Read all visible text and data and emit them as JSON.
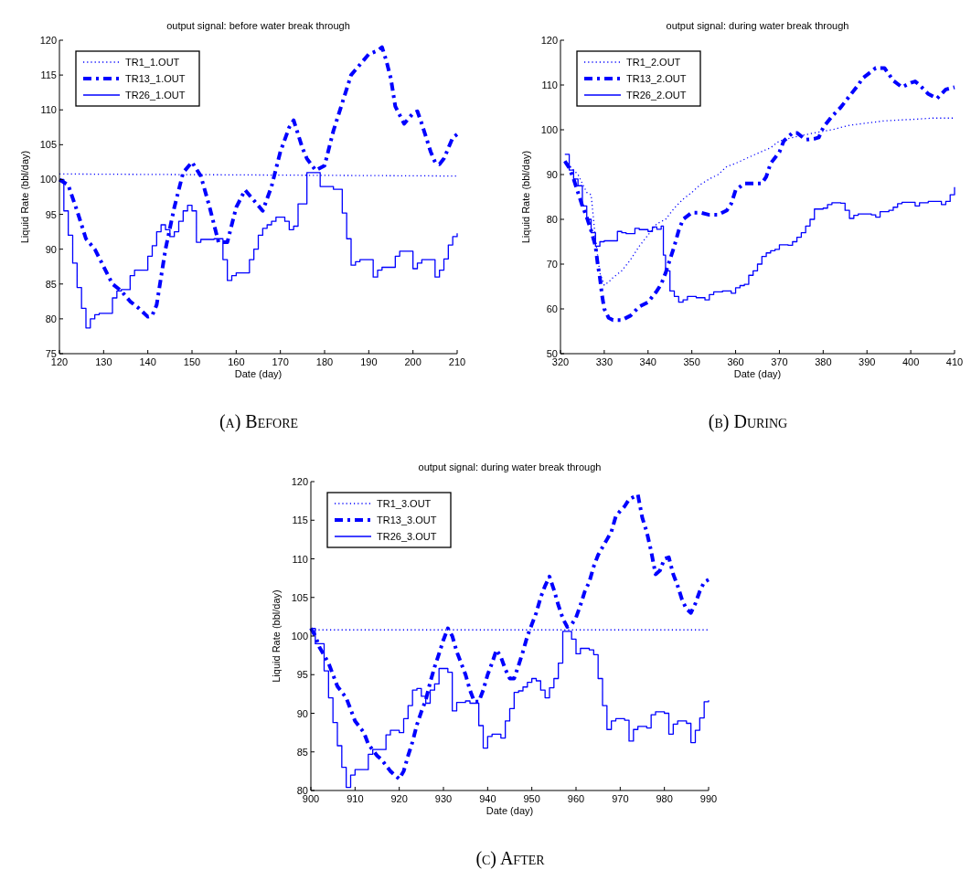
{
  "chart_data": [
    {
      "type": "line",
      "title": "output signal: before water break through",
      "xlabel": "Date (day)",
      "ylabel": "Liquid Rate (bbl/day)",
      "xlim": [
        120,
        210
      ],
      "xticks": [
        120,
        130,
        140,
        150,
        160,
        170,
        180,
        190,
        200,
        210
      ],
      "ylim": [
        75,
        120
      ],
      "yticks": [
        75,
        80,
        85,
        90,
        95,
        100,
        105,
        110,
        115,
        120
      ],
      "legend": "top left",
      "annotations": [
        "(a) Before"
      ],
      "series": [
        {
          "name": "TR1_1.OUT",
          "color": "#0000ff",
          "line_style": "dotted",
          "x": [
            120,
            150,
            180,
            210
          ],
          "values": [
            100.8,
            100.7,
            100.6,
            100.5
          ]
        },
        {
          "name": "TR13_1.OUT",
          "color": "#0000ff",
          "line_style": "dashed",
          "x": [
            120,
            122,
            124,
            126,
            128,
            130,
            132,
            134,
            136,
            138,
            140,
            141,
            142,
            143,
            144,
            146,
            148,
            150,
            152,
            154,
            156,
            158,
            160,
            162,
            164,
            166,
            168,
            170,
            172,
            173,
            175,
            176,
            178,
            180,
            182,
            184,
            186,
            188,
            190,
            192,
            193,
            194,
            195,
            196,
            198,
            200,
            201,
            202,
            203,
            204,
            205,
            206,
            207,
            208,
            209,
            210
          ],
          "values": [
            100,
            99.2,
            95.5,
            91.5,
            90,
            87.5,
            85,
            84,
            82.5,
            81.5,
            80.3,
            80.5,
            82,
            86,
            90,
            96,
            101,
            102.5,
            100.5,
            96,
            91,
            91,
            96,
            98.5,
            97,
            95.5,
            99,
            104,
            107.5,
            108.5,
            104.5,
            103,
            101.3,
            102,
            107,
            111,
            115,
            116.5,
            118,
            118.5,
            119,
            117,
            114.5,
            110.5,
            108,
            109.5,
            109.8,
            108,
            106,
            104,
            102.5,
            102.2,
            103,
            104.5,
            106,
            106.5
          ]
        },
        {
          "name": "TR26_1.OUT",
          "type": "step",
          "color": "#0000ff",
          "line_style": "solid",
          "x": [
            120,
            121,
            122,
            123,
            124,
            125,
            126,
            127,
            128,
            129,
            132,
            133,
            134,
            136,
            137,
            138,
            140,
            141,
            142,
            143,
            144,
            145,
            146,
            147,
            148,
            149,
            150,
            151,
            152,
            155,
            157,
            158,
            159,
            160,
            162,
            163,
            164,
            165,
            166,
            167,
            168,
            169,
            171,
            172,
            173,
            174,
            176,
            179,
            182,
            184,
            185,
            186,
            187,
            188,
            191,
            192,
            193,
            196,
            197,
            200,
            201,
            202,
            205,
            206,
            207,
            208,
            209,
            210
          ],
          "values": [
            100,
            95.5,
            92,
            88,
            84.5,
            81.5,
            78.7,
            80,
            80.6,
            80.8,
            83,
            84,
            84.2,
            86.2,
            87,
            87,
            89,
            90.5,
            92.5,
            93.5,
            92.8,
            91.8,
            92.5,
            94,
            95.5,
            96.3,
            95.5,
            91,
            91.4,
            91.5,
            88.5,
            85.5,
            86.2,
            86.6,
            86.6,
            88.5,
            90,
            92,
            93,
            93.5,
            94,
            94.6,
            94,
            92.8,
            93.3,
            96.5,
            101,
            99,
            98.6,
            95.2,
            91.5,
            87.7,
            88.2,
            88.5,
            86,
            87,
            87.4,
            89,
            89.7,
            87.2,
            88,
            88.5,
            86,
            87,
            88.6,
            90.6,
            91.8,
            92.3
          ]
        }
      ]
    },
    {
      "type": "line",
      "title": "output signal: during water break through",
      "xlabel": "Date (day)",
      "ylabel": "Liquid Rate (bbl/day)",
      "xlim": [
        320,
        410
      ],
      "xticks": [
        320,
        330,
        340,
        350,
        360,
        370,
        380,
        390,
        400,
        410
      ],
      "ylim": [
        50,
        120
      ],
      "yticks": [
        50,
        60,
        70,
        80,
        90,
        100,
        110,
        120
      ],
      "legend": "top left",
      "annotations": [
        "(b) During"
      ],
      "series": [
        {
          "name": "TR1_2.OUT",
          "color": "#0000ff",
          "line_style": "dotted",
          "x": [
            321,
            322,
            324,
            326,
            327,
            328,
            329,
            330,
            331,
            332,
            334,
            336,
            338,
            340,
            342,
            344,
            346,
            348,
            350,
            352,
            354,
            356,
            358,
            360,
            364,
            368,
            370,
            374,
            378,
            382,
            386,
            390,
            394,
            400,
            405,
            410
          ],
          "values": [
            93,
            92,
            90,
            86,
            85.5,
            75.5,
            68,
            65.3,
            66,
            67,
            68.5,
            71,
            74,
            76.5,
            79,
            80,
            82.5,
            84.5,
            86,
            87.8,
            89,
            90,
            91.8,
            92.5,
            94.3,
            96,
            97.5,
            98.5,
            99.3,
            100,
            101,
            101.5,
            102,
            102.3,
            102.6,
            102.6
          ]
        },
        {
          "name": "TR13_2.OUT",
          "color": "#0000ff",
          "line_style": "dashed",
          "x": [
            321,
            322,
            323,
            324,
            325,
            326,
            327,
            328,
            328.5,
            329,
            329.5,
            330,
            331,
            332,
            334,
            336,
            338,
            340,
            342,
            343,
            344,
            345,
            346,
            347,
            348,
            350,
            352,
            354,
            356,
            358,
            359,
            360,
            362,
            364,
            366,
            367,
            368,
            370,
            371,
            373,
            374,
            376,
            378,
            379,
            380,
            382,
            384,
            386,
            388,
            389,
            391,
            392,
            394,
            396,
            398,
            400,
            401,
            402,
            404,
            406,
            408,
            410
          ],
          "values": [
            93,
            91.5,
            89,
            86,
            83,
            80.5,
            77.5,
            74,
            70,
            67,
            63,
            60,
            58,
            57.5,
            57.5,
            58.5,
            60.5,
            61.5,
            64,
            65.5,
            68,
            71,
            74,
            77.5,
            80,
            81.5,
            81.5,
            81,
            81,
            82,
            83.5,
            86.5,
            88,
            88,
            88,
            89.5,
            92.5,
            95,
            97.5,
            99.3,
            99.3,
            97.8,
            98,
            98.3,
            100.5,
            103,
            105,
            107.5,
            110,
            111.5,
            113,
            113.8,
            113.8,
            111,
            109.5,
            110.5,
            110.8,
            110,
            108,
            107,
            109,
            109.5
          ]
        },
        {
          "name": "TR26_2.OUT",
          "type": "step",
          "color": "#0000ff",
          "line_style": "solid",
          "x": [
            321,
            322,
            323,
            324,
            325,
            326,
            327,
            328,
            329,
            330,
            332,
            333,
            334,
            335,
            337,
            338,
            340,
            341,
            342,
            343,
            343.5,
            344,
            345,
            346,
            347,
            348,
            349,
            351,
            353,
            354,
            355,
            357,
            359,
            360,
            361,
            362,
            363,
            364,
            365,
            366,
            367,
            368,
            369,
            370,
            372,
            373,
            374,
            375,
            376,
            377,
            378,
            380,
            381,
            382,
            384,
            385,
            386,
            387,
            388,
            391,
            392,
            393,
            395,
            396,
            397,
            398,
            400,
            401,
            402,
            404,
            406,
            407,
            408,
            409,
            410
          ],
          "values": [
            94.5,
            91,
            89,
            87.5,
            83,
            80,
            77,
            74,
            75,
            75.2,
            75.2,
            77.3,
            77,
            76.8,
            78,
            77.7,
            77.3,
            78.3,
            77.8,
            78.5,
            72,
            68.5,
            64,
            62.8,
            61.5,
            62,
            62.8,
            62.5,
            62,
            63.2,
            63.8,
            64,
            63.5,
            64.7,
            65.2,
            65.5,
            67.5,
            68.5,
            70,
            71.7,
            72.5,
            73,
            73.3,
            74.3,
            74.2,
            75,
            76,
            77,
            78.5,
            80,
            82.3,
            82.5,
            83.3,
            83.7,
            83.6,
            82,
            80.2,
            80.9,
            81.2,
            81,
            80.5,
            81.7,
            82,
            82.7,
            83.5,
            83.8,
            83.8,
            83,
            83.7,
            84,
            84,
            83.3,
            84,
            85.5,
            87.2
          ]
        }
      ]
    },
    {
      "type": "line",
      "title": "output signal: during water break through",
      "xlabel": "Date (day)",
      "ylabel": "Liquid Rate (bbl/day)",
      "xlim": [
        900,
        990
      ],
      "xticks": [
        900,
        910,
        920,
        930,
        940,
        950,
        960,
        970,
        980,
        990
      ],
      "ylim": [
        80,
        120
      ],
      "yticks": [
        80,
        85,
        90,
        95,
        100,
        105,
        110,
        115,
        120
      ],
      "legend": "top left",
      "annotations": [
        "(c) After"
      ],
      "series": [
        {
          "name": "TR1_3.OUT",
          "color": "#0000ff",
          "line_style": "dotted",
          "x": [
            900,
            930,
            960,
            990
          ],
          "values": [
            100.8,
            100.8,
            100.8,
            100.8
          ]
        },
        {
          "name": "TR13_3.OUT",
          "color": "#0000ff",
          "line_style": "dashed",
          "x": [
            900,
            901,
            902,
            904,
            905,
            906,
            908,
            909,
            910,
            912,
            913,
            915,
            916,
            918,
            920,
            921,
            922,
            923,
            924,
            925,
            926,
            927,
            928,
            929,
            930,
            931,
            932,
            933,
            934,
            935,
            936,
            937,
            938,
            939,
            940,
            941,
            942,
            943,
            944,
            945,
            946,
            947,
            948,
            949,
            950,
            951,
            952,
            953,
            954,
            955,
            956,
            957,
            958,
            959,
            960,
            961,
            962,
            963,
            964,
            965,
            966,
            967,
            968,
            969,
            970,
            971,
            972,
            973,
            974,
            975,
            976,
            977,
            978,
            979,
            980,
            981,
            982,
            983,
            984,
            985,
            986,
            987,
            988,
            989,
            990
          ],
          "values": [
            101,
            100,
            98.5,
            96.5,
            95,
            93.5,
            92,
            90.5,
            89,
            87.5,
            86,
            84.5,
            84,
            82.5,
            81.5,
            82.5,
            84.5,
            86.3,
            88.5,
            90.2,
            91.7,
            94,
            96,
            97.7,
            99.5,
            101,
            100,
            98,
            96.5,
            95,
            93,
            91.5,
            91.5,
            93,
            95,
            96.5,
            98.2,
            97.3,
            95.7,
            94.5,
            94.5,
            96.2,
            98,
            100,
            101.5,
            103,
            105,
            106.5,
            107.7,
            106,
            104,
            102.3,
            101.2,
            101.5,
            102.4,
            104,
            105.8,
            107,
            109,
            110.5,
            111.5,
            112.5,
            113.5,
            115.5,
            116.2,
            116.8,
            117.7,
            118,
            118.3,
            115.3,
            113.5,
            111,
            108,
            108.5,
            110,
            110.2,
            108,
            106.5,
            104.7,
            103.5,
            103,
            104.2,
            105.8,
            107,
            107.3
          ]
        },
        {
          "name": "TR26_3.OUT",
          "type": "step",
          "color": "#0000ff",
          "line_style": "solid",
          "x": [
            900,
            901,
            903,
            904,
            905,
            906,
            907,
            908,
            909,
            910,
            913,
            914,
            916,
            917,
            918,
            920,
            921,
            922,
            923,
            924,
            925,
            926,
            927,
            928,
            929,
            931,
            932,
            933,
            935,
            936,
            938,
            939,
            940,
            941,
            943,
            944,
            945,
            946,
            947,
            948,
            949,
            950,
            951,
            952,
            953,
            954,
            955,
            956,
            957,
            959,
            960,
            961,
            963,
            964,
            965,
            966,
            967,
            968,
            969,
            971,
            972,
            973,
            974,
            976,
            977,
            978,
            980,
            981,
            982,
            983,
            985,
            986,
            987,
            988,
            989,
            990
          ],
          "values": [
            101,
            99,
            95.5,
            92,
            88.8,
            85.8,
            83,
            80.4,
            82,
            82.7,
            84.7,
            85.3,
            85.3,
            87.2,
            87.8,
            87.5,
            89.3,
            91,
            93,
            93.2,
            92.2,
            91.3,
            93,
            93.8,
            95.8,
            95.3,
            90.3,
            91.4,
            91.6,
            91.3,
            88.4,
            85.5,
            87,
            87.3,
            86.8,
            89,
            90.6,
            92.7,
            92.9,
            93.4,
            94,
            94.5,
            94.2,
            93,
            92,
            93.3,
            94.5,
            96.5,
            100.6,
            99.6,
            97.7,
            98.4,
            98.2,
            97.6,
            94.5,
            91,
            87.9,
            89,
            89.3,
            89.1,
            86.4,
            87.9,
            88.3,
            88.1,
            89.8,
            90.2,
            90,
            87.3,
            88.6,
            89,
            88.7,
            86.2,
            87.8,
            89.4,
            91.5,
            91.7
          ]
        }
      ]
    }
  ]
}
